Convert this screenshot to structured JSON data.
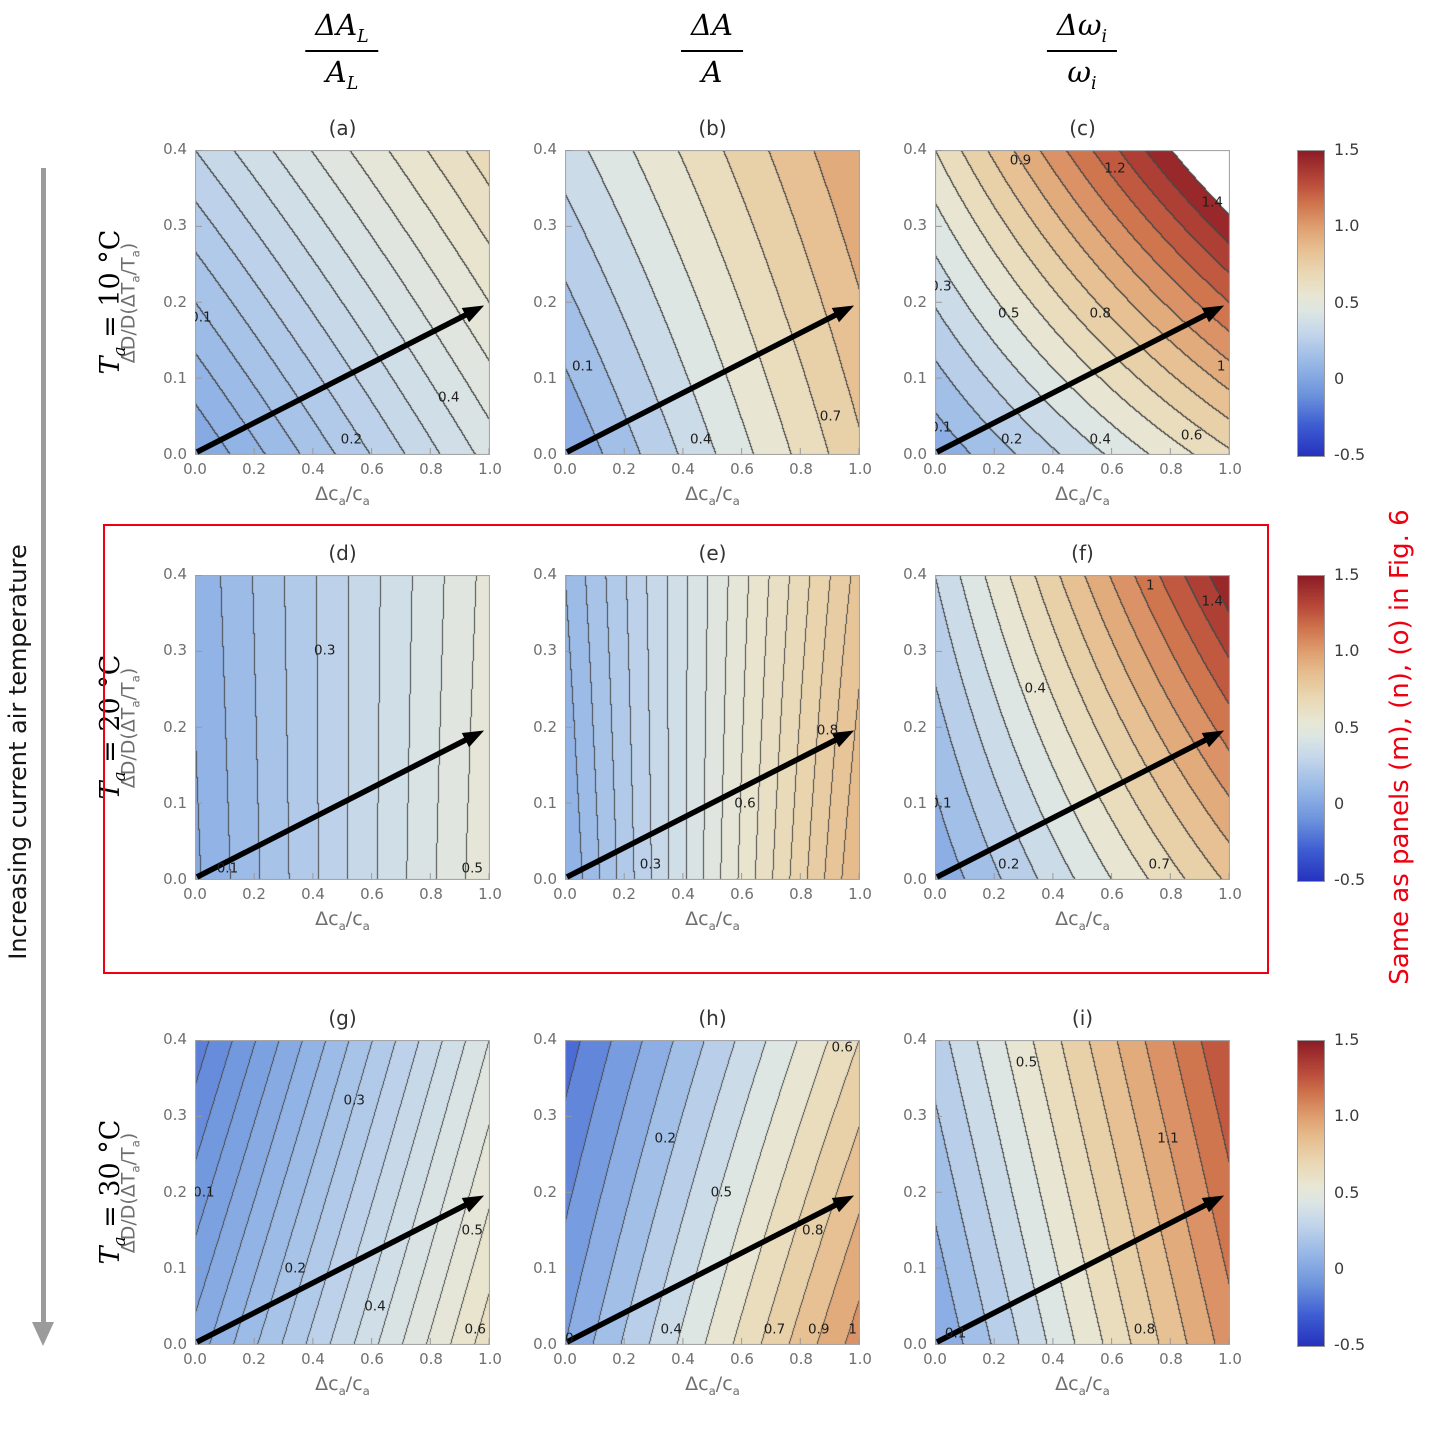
{
  "colors": {
    "accent_red": "#ee0011",
    "plot_frame": "#a6a6a6",
    "axis_text": "#6f6f6f",
    "contour_line": "#464646",
    "arrow_black": "#000000",
    "side_arrow_gray": "#9b9b9b"
  },
  "headers": {
    "columns": [
      {
        "num_main": "ΔA",
        "num_sub": "L",
        "den_main": "A",
        "den_sub": "L"
      },
      {
        "num_main": "ΔA",
        "num_sub": "",
        "den_main": "A",
        "den_sub": ""
      },
      {
        "num_main": "Δω",
        "num_sub": "i",
        "den_main": "ω",
        "den_sub": "i"
      }
    ]
  },
  "rows": [
    {
      "symbol": "T",
      "sub": "a",
      "rest": " = 10 °C"
    },
    {
      "symbol": "T",
      "sub": "a",
      "rest": " = 20 °C"
    },
    {
      "symbol": "T",
      "sub": "a",
      "rest": " = 30 °C"
    }
  ],
  "side_label": "Increasing current air temperature",
  "annotation": {
    "text": "Same as panels (m), (n), (o) in Fig. 6"
  },
  "chart_data": {
    "type": "contour_grid",
    "x_axis": {
      "label_parts": [
        "Δc",
        "a",
        "/c",
        "a"
      ],
      "range": [
        0,
        1
      ],
      "ticks": [
        "0.0",
        "0.2",
        "0.4",
        "0.6",
        "0.8",
        "1.0"
      ]
    },
    "y_axis": {
      "label_parts": [
        "ΔD/D(ΔT",
        "a",
        "/T",
        "a",
        ")"
      ],
      "range": [
        0,
        0.4
      ],
      "ticks": [
        "0.0",
        "0.1",
        "0.2",
        "0.3",
        "0.4"
      ]
    },
    "colorbar": {
      "range": [
        -0.5,
        1.5
      ],
      "tick_labels": [
        "1.5",
        "1.0",
        "0.5",
        "0",
        "-0.5"
      ]
    },
    "colormap_stops": [
      [
        -0.5,
        "#2633bf"
      ],
      [
        -0.3,
        "#3f5ed2"
      ],
      [
        -0.1,
        "#6d93dc"
      ],
      [
        0.1,
        "#96b7e6"
      ],
      [
        0.3,
        "#c3d6ea"
      ],
      [
        0.45,
        "#dde6e3"
      ],
      [
        0.55,
        "#e8e6d3"
      ],
      [
        0.7,
        "#e9d8b4"
      ],
      [
        0.85,
        "#e7c193"
      ],
      [
        1.0,
        "#dfa071"
      ],
      [
        1.15,
        "#d0764f"
      ],
      [
        1.3,
        "#b94a3a"
      ],
      [
        1.5,
        "#8e1d26"
      ]
    ],
    "arrow": {
      "x1": 0,
      "y1": 0,
      "x2": 0.98,
      "y2": 0.196
    },
    "panels": [
      {
        "key": "a",
        "label": "(a)",
        "quantity": "ΔA_L/A_L",
        "air_temperature": "10 °C",
        "corners": {
          "f00": 0.0,
          "f10": 0.42,
          "f01": 0.3,
          "f11": 0.68
        },
        "level_step": 0.05,
        "clip_max": null,
        "contour_labels": [
          {
            "v": "0.1",
            "x": 0.02,
            "y": 0.18
          },
          {
            "v": "0.2",
            "x": 0.53,
            "y": 0.02
          },
          {
            "v": "0.4",
            "x": 0.86,
            "y": 0.075
          }
        ]
      },
      {
        "key": "b",
        "label": "(b)",
        "quantity": "ΔA/A",
        "air_temperature": "10 °C",
        "corners": {
          "f00": 0.0,
          "f10": 0.78,
          "f01": 0.35,
          "f11": 1.0
        },
        "level_step": 0.1,
        "clip_max": null,
        "contour_labels": [
          {
            "v": "0.1",
            "x": 0.06,
            "y": 0.115
          },
          {
            "v": "0.4",
            "x": 0.46,
            "y": 0.02
          },
          {
            "v": "0.7",
            "x": 0.9,
            "y": 0.05
          }
        ]
      },
      {
        "key": "c",
        "label": "(c)",
        "quantity": "Δω_i/ω_i",
        "air_temperature": "10 °C",
        "corners": {
          "f00": 0.02,
          "f10": 0.68,
          "f01": 0.6,
          "f11": 1.72
        },
        "level_step": 0.1,
        "clip_max": 1.5,
        "contour_labels": [
          {
            "v": "0.1",
            "x": 0.02,
            "y": 0.035
          },
          {
            "v": "0.2",
            "x": 0.26,
            "y": 0.02
          },
          {
            "v": "0.4",
            "x": 0.56,
            "y": 0.02
          },
          {
            "v": "0.6",
            "x": 0.87,
            "y": 0.025
          },
          {
            "v": "0.3",
            "x": 0.02,
            "y": 0.22
          },
          {
            "v": "0.5",
            "x": 0.25,
            "y": 0.185
          },
          {
            "v": "0.8",
            "x": 0.56,
            "y": 0.185
          },
          {
            "v": "1",
            "x": 0.97,
            "y": 0.115
          },
          {
            "v": "0.9",
            "x": 0.29,
            "y": 0.385
          },
          {
            "v": "1.2",
            "x": 0.61,
            "y": 0.375
          },
          {
            "v": "1.4",
            "x": 0.94,
            "y": 0.33
          }
        ]
      },
      {
        "key": "d",
        "label": "(d)",
        "quantity": "ΔA_L/A_L",
        "air_temperature": "20 °C",
        "corners": {
          "f00": 0.04,
          "f10": 0.54,
          "f01": 0.06,
          "f11": 0.52
        },
        "level_step": 0.05,
        "clip_max": null,
        "contour_labels": [
          {
            "v": "0.1",
            "x": 0.11,
            "y": 0.015
          },
          {
            "v": "0.3",
            "x": 0.44,
            "y": 0.3
          },
          {
            "v": "0.5",
            "x": 0.94,
            "y": 0.015
          }
        ]
      },
      {
        "key": "e",
        "label": "(e)",
        "quantity": "ΔA/A",
        "air_temperature": "20 °C",
        "corners": {
          "f00": 0.05,
          "f10": 0.9,
          "f01": 0.1,
          "f11": 0.82
        },
        "level_step": 0.05,
        "clip_max": null,
        "contour_labels": [
          {
            "v": "0.3",
            "x": 0.29,
            "y": 0.02
          },
          {
            "v": "0.6",
            "x": 0.61,
            "y": 0.1
          },
          {
            "v": "0.8",
            "x": 0.89,
            "y": 0.195
          }
        ]
      },
      {
        "key": "f",
        "label": "(f)",
        "quantity": "Δω_i/ω_i",
        "air_temperature": "20 °C",
        "corners": {
          "f00": 0.02,
          "f10": 0.82,
          "f01": 0.3,
          "f11": 1.48
        },
        "level_step": 0.1,
        "clip_max": null,
        "contour_labels": [
          {
            "v": "0.1",
            "x": 0.02,
            "y": 0.1
          },
          {
            "v": "0.2",
            "x": 0.25,
            "y": 0.02
          },
          {
            "v": "0.4",
            "x": 0.34,
            "y": 0.25
          },
          {
            "v": "0.7",
            "x": 0.76,
            "y": 0.02
          },
          {
            "v": "1",
            "x": 0.73,
            "y": 0.385
          },
          {
            "v": "1.4",
            "x": 0.94,
            "y": 0.365
          }
        ]
      },
      {
        "key": "g",
        "label": "(g)",
        "quantity": "ΔA_L/A_L",
        "air_temperature": "30 °C",
        "corners": {
          "f00": 0.02,
          "f10": 0.63,
          "f01": -0.18,
          "f11": 0.45
        },
        "level_step": 0.05,
        "clip_max": null,
        "contour_labels": [
          {
            "v": "0.1",
            "x": 0.03,
            "y": 0.2
          },
          {
            "v": "0.2",
            "x": 0.34,
            "y": 0.1
          },
          {
            "v": "0.3",
            "x": 0.54,
            "y": 0.32
          },
          {
            "v": "0.4",
            "x": 0.61,
            "y": 0.05
          },
          {
            "v": "0.5",
            "x": 0.94,
            "y": 0.15
          },
          {
            "v": "0.6",
            "x": 0.95,
            "y": 0.02
          }
        ]
      },
      {
        "key": "h",
        "label": "(h)",
        "quantity": "ΔA/A",
        "air_temperature": "30 °C",
        "corners": {
          "f00": 0.0,
          "f10": 1.05,
          "f01": -0.25,
          "f11": 0.7
        },
        "level_step": 0.1,
        "clip_max": null,
        "contour_labels": [
          {
            "v": "0",
            "x": 0.015,
            "y": 0.008
          },
          {
            "v": "0.2",
            "x": 0.34,
            "y": 0.27
          },
          {
            "v": "0.4",
            "x": 0.36,
            "y": 0.02
          },
          {
            "v": "0.5",
            "x": 0.53,
            "y": 0.2
          },
          {
            "v": "0.6",
            "x": 0.94,
            "y": 0.39
          },
          {
            "v": "0.7",
            "x": 0.71,
            "y": 0.02
          },
          {
            "v": "0.8",
            "x": 0.84,
            "y": 0.15
          },
          {
            "v": "0.9",
            "x": 0.86,
            "y": 0.02
          },
          {
            "v": "1",
            "x": 0.975,
            "y": 0.02
          }
        ]
      },
      {
        "key": "i",
        "label": "(i)",
        "quantity": "Δω_i/ω_i",
        "air_temperature": "30 °C",
        "corners": {
          "f00": 0.0,
          "f10": 1.05,
          "f01": 0.25,
          "f11": 1.3
        },
        "level_step": 0.1,
        "clip_max": null,
        "contour_labels": [
          {
            "v": "0.1",
            "x": 0.07,
            "y": 0.015
          },
          {
            "v": "0.5",
            "x": 0.31,
            "y": 0.37
          },
          {
            "v": "0.8",
            "x": 0.71,
            "y": 0.02
          },
          {
            "v": "1.1",
            "x": 0.79,
            "y": 0.27
          }
        ]
      }
    ]
  }
}
